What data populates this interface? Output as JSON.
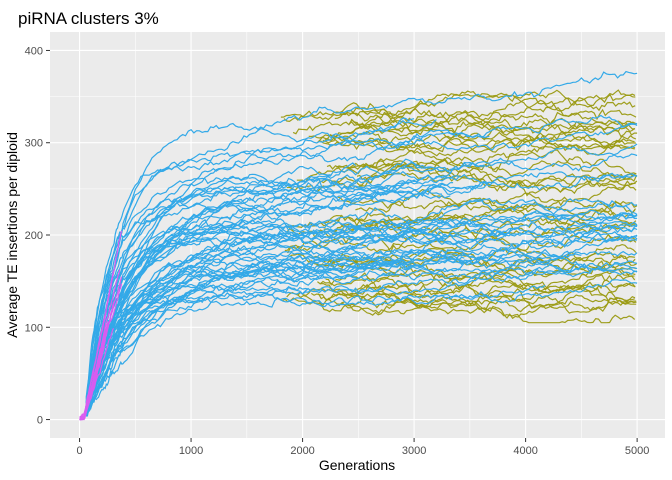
{
  "chart_data": {
    "type": "line",
    "title": "piRNA clusters 3%",
    "xlabel": "Generations",
    "ylabel": "Average TE insertions per diploid",
    "xlim": [
      -265,
      5250
    ],
    "ylim": [
      -20,
      420
    ],
    "x_ticks": [
      0,
      1000,
      2000,
      3000,
      4000,
      5000
    ],
    "x_tick_labels": [
      "0",
      "1000",
      "2000",
      "3000",
      "4000",
      "5000"
    ],
    "y_ticks": [
      0,
      100,
      200,
      300,
      400
    ],
    "y_tick_labels": [
      "0",
      "100",
      "200",
      "300",
      "400"
    ],
    "grid": true,
    "legend": "none",
    "colors": {
      "panel": "#ebebeb",
      "grid": "#ffffff",
      "blue": "#33a9e8",
      "olive": "#9a9a12",
      "magenta": "#d85cf0"
    },
    "series_groups": [
      {
        "color": "#d85cf0",
        "count": 15,
        "x": [
          0,
          30,
          60,
          90,
          120,
          150,
          180,
          210,
          240,
          270,
          300,
          330,
          360
        ],
        "example_values": [
          0,
          3,
          12,
          30,
          55,
          75,
          92,
          108,
          120,
          135,
          150,
          168,
          185
        ]
      },
      {
        "color": "#33a9e8",
        "count": 60,
        "x": [
          0,
          100,
          200,
          300,
          500,
          700,
          1000,
          1500,
          2000,
          2500,
          3000,
          3500,
          4000,
          4500,
          5000
        ],
        "example_final_range": [
          120,
          345
        ],
        "plateau_median": 205
      },
      {
        "color": "#9a9a12",
        "count": 45,
        "x": [
          1800,
          2500,
          3000,
          3500,
          4000,
          4500,
          5000
        ],
        "example_final_range": [
          108,
          368
        ],
        "plateau_median": 200
      }
    ]
  }
}
